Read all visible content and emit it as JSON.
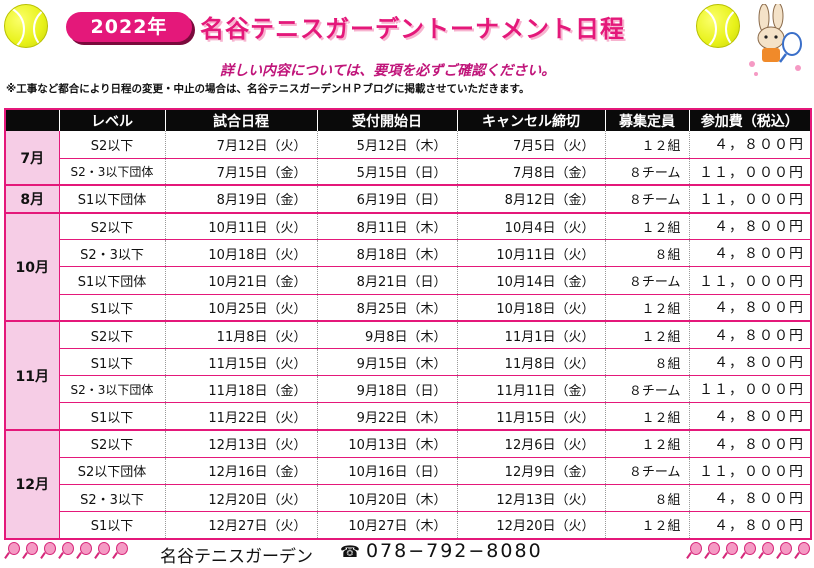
{
  "header": {
    "year_badge": "2022年",
    "title": "名谷テニスガーデントーナメント日程",
    "subtitle": "詳しい内容については、要項を必ずご確認ください。",
    "note": "※工事など都合により日程の変更・中止の場合は、名谷テニスガーデンＨＰブログに掲載させていただきます。"
  },
  "table": {
    "headers": [
      "",
      "レベル",
      "試合日程",
      "受付開始日",
      "キャンセル締切",
      "募集定員",
      "参加費（税込）"
    ],
    "months": [
      {
        "month": "7月",
        "rows": [
          {
            "level": "S2以下",
            "match": "7月12日（火）",
            "open": "5月12日（木）",
            "cancel": "7月5日（火）",
            "capacity": "１２組",
            "fee": "４，８００円"
          },
          {
            "level": "S2・3以下団体",
            "match": "7月15日（金）",
            "open": "5月15日（日）",
            "cancel": "7月8日（金）",
            "capacity": "８チーム",
            "fee": "１１，０００円"
          }
        ]
      },
      {
        "month": "8月",
        "rows": [
          {
            "level": "S1以下団体",
            "match": "8月19日（金）",
            "open": "6月19日（日）",
            "cancel": "8月12日（金）",
            "capacity": "８チーム",
            "fee": "１１，０００円"
          }
        ]
      },
      {
        "month": "10月",
        "rows": [
          {
            "level": "S2以下",
            "match": "10月11日（火）",
            "open": "8月11日（木）",
            "cancel": "10月4日（火）",
            "capacity": "１２組",
            "fee": "４，８００円"
          },
          {
            "level": "S2・3以下",
            "match": "10月18日（火）",
            "open": "8月18日（木）",
            "cancel": "10月11日（火）",
            "capacity": "８組",
            "fee": "４，８００円"
          },
          {
            "level": "S1以下団体",
            "match": "10月21日（金）",
            "open": "8月21日（日）",
            "cancel": "10月14日（金）",
            "capacity": "８チーム",
            "fee": "１１，０００円"
          },
          {
            "level": "S1以下",
            "match": "10月25日（火）",
            "open": "8月25日（木）",
            "cancel": "10月18日（火）",
            "capacity": "１２組",
            "fee": "４，８００円"
          }
        ]
      },
      {
        "month": "11月",
        "rows": [
          {
            "level": "S2以下",
            "match": "11月8日（火）",
            "open": "9月8日（木）",
            "cancel": "11月1日（火）",
            "capacity": "１２組",
            "fee": "４，８００円"
          },
          {
            "level": "S1以下",
            "match": "11月15日（火）",
            "open": "9月15日（木）",
            "cancel": "11月8日（火）",
            "capacity": "８組",
            "fee": "４，８００円"
          },
          {
            "level": "S2・3以下団体",
            "match": "11月18日（金）",
            "open": "9月18日（日）",
            "cancel": "11月11日（金）",
            "capacity": "８チーム",
            "fee": "１１，０００円"
          },
          {
            "level": "S1以下",
            "match": "11月22日（火）",
            "open": "9月22日（木）",
            "cancel": "11月15日（火）",
            "capacity": "１２組",
            "fee": "４，８００円"
          }
        ]
      },
      {
        "month": "12月",
        "rows": [
          {
            "level": "S2以下",
            "match": "12月13日（火）",
            "open": "10月13日（木）",
            "cancel": "12月6日（火）",
            "capacity": "１２組",
            "fee": "４，８００円"
          },
          {
            "level": "S2以下団体",
            "match": "12月16日（金）",
            "open": "10月16日（日）",
            "cancel": "12月9日（金）",
            "capacity": "８チーム",
            "fee": "１１，０００円"
          },
          {
            "level": "S2・3以下",
            "match": "12月20日（火）",
            "open": "10月20日（木）",
            "cancel": "12月13日（火）",
            "capacity": "８組",
            "fee": "４，８００円"
          },
          {
            "level": "S1以下",
            "match": "12月27日（火）",
            "open": "10月27日（木）",
            "cancel": "12月20日（火）",
            "capacity": "１２組",
            "fee": "４，８００円"
          }
        ]
      }
    ]
  },
  "footer": {
    "name": "名谷テニスガーデン",
    "phone_icon": "telephone-icon",
    "phone": "078−792−8080"
  },
  "colors": {
    "accent": "#e4187a",
    "month_bg": "#f6cde6",
    "header_bg": "#0a0a0a",
    "ball": "#e8f21a"
  }
}
